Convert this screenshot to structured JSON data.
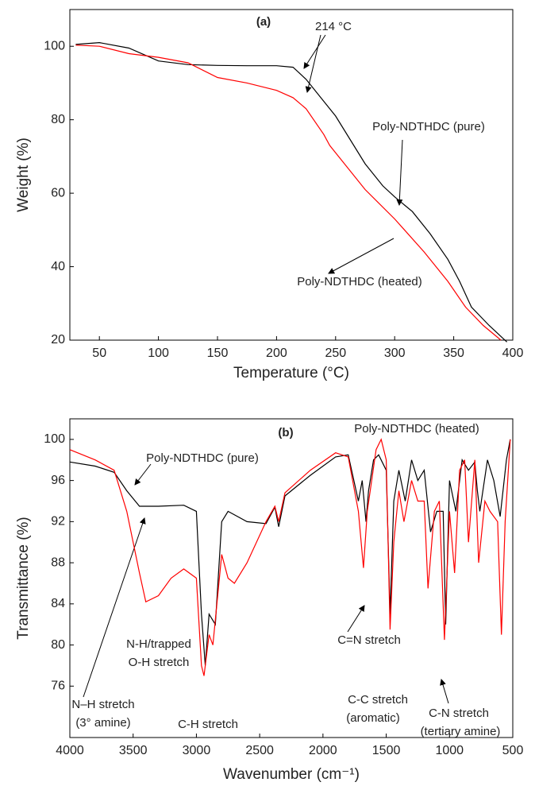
{
  "chart_data": [
    {
      "type": "line",
      "title": "(a)",
      "xlabel": "Temperature (°C)",
      "ylabel": "Weight (%)",
      "xlim": [
        25,
        400
      ],
      "xticks": [
        50,
        100,
        150,
        200,
        250,
        300,
        350,
        400
      ],
      "ylim": [
        20,
        110
      ],
      "yticks": [
        20,
        40,
        60,
        80,
        100
      ],
      "annotations": [
        "214 °C"
      ],
      "series": [
        {
          "name": "Poly-NDTHDC (pure)",
          "color": "#000000",
          "x": [
            30,
            50,
            75,
            100,
            125,
            150,
            175,
            200,
            214,
            225,
            250,
            275,
            290,
            300,
            315,
            330,
            345,
            355,
            365,
            380,
            395
          ],
          "values": [
            100.5,
            101,
            99.5,
            96,
            95,
            94.8,
            94.7,
            94.7,
            94.3,
            91,
            81,
            68,
            62,
            59,
            55,
            49,
            42,
            36,
            29,
            24,
            19.5
          ]
        },
        {
          "name": "Poly-NDTHDC (heated)",
          "color": "#ff0000",
          "x": [
            30,
            50,
            75,
            100,
            125,
            150,
            175,
            200,
            214,
            225,
            240,
            245,
            250,
            260,
            275,
            300,
            325,
            345,
            360,
            375,
            390
          ],
          "values": [
            100.3,
            100,
            98,
            97,
            95.5,
            91.5,
            90,
            88,
            86,
            83,
            76,
            73,
            71,
            67,
            61,
            53,
            44,
            36,
            29,
            24,
            20
          ]
        }
      ]
    },
    {
      "type": "line",
      "title": "(b)",
      "xlabel": "Wavenumber (cm⁻¹)",
      "ylabel": "Transmittance (%)",
      "xlim": [
        4000,
        500
      ],
      "xticks": [
        4000,
        3500,
        3000,
        2500,
        2000,
        1500,
        1000,
        500
      ],
      "ylim": [
        71,
        102
      ],
      "yticks": [
        76,
        80,
        84,
        88,
        92,
        96,
        100
      ],
      "annotations": [
        "C=N stretch",
        "N-H/trapped",
        "O-H stretch",
        "N–H stretch",
        "(3° amine)",
        "C-H stretch",
        "C-C stretch",
        "(aromatic)",
        "C-N stretch",
        "(tertiary amine)"
      ],
      "series": [
        {
          "name": "Poly-NDTHDC (pure)",
          "color": "#000000",
          "x": [
            4000,
            3800,
            3650,
            3550,
            3450,
            3300,
            3100,
            3000,
            2960,
            2930,
            2900,
            2850,
            2800,
            2750,
            2600,
            2450,
            2380,
            2350,
            2300,
            2100,
            1900,
            1800,
            1720,
            1690,
            1660,
            1640,
            1600,
            1560,
            1500,
            1470,
            1440,
            1400,
            1350,
            1300,
            1250,
            1200,
            1150,
            1100,
            1050,
            1030,
            1000,
            950,
            900,
            850,
            800,
            780,
            760,
            700,
            650,
            600,
            550,
            520
          ],
          "values": [
            97.8,
            97.4,
            96.8,
            95,
            93.5,
            93.5,
            93.6,
            93,
            83,
            78,
            83,
            82,
            92,
            93,
            92,
            91.8,
            93.4,
            91.5,
            94.5,
            96.5,
            98.3,
            98.5,
            94,
            96,
            92,
            95,
            98,
            98.5,
            97,
            83,
            94,
            97,
            94,
            98,
            96,
            97,
            91,
            93,
            93,
            82,
            96,
            93,
            98,
            97,
            97.8,
            95,
            93,
            98,
            96,
            92.5,
            98,
            100
          ]
        },
        {
          "name": "Poly-NDTHDC (heated)",
          "color": "#ff0000",
          "x": [
            4000,
            3800,
            3650,
            3550,
            3450,
            3400,
            3300,
            3200,
            3100,
            3000,
            2960,
            2940,
            2900,
            2870,
            2800,
            2750,
            2700,
            2600,
            2450,
            2380,
            2350,
            2300,
            2100,
            1900,
            1800,
            1720,
            1680,
            1650,
            1580,
            1540,
            1500,
            1470,
            1440,
            1400,
            1360,
            1300,
            1250,
            1200,
            1170,
            1120,
            1080,
            1040,
            1000,
            960,
            920,
            880,
            850,
            800,
            770,
            720,
            680,
            620,
            590,
            560,
            520
          ],
          "values": [
            99,
            98,
            97,
            93,
            87,
            84.2,
            84.8,
            86.5,
            87.4,
            86.5,
            78,
            77,
            81,
            80,
            88.8,
            86.5,
            86,
            88,
            92,
            93.5,
            92,
            94.8,
            97,
            98.7,
            98.3,
            93,
            87.5,
            93,
            99,
            100,
            98,
            81.5,
            90,
            95,
            92,
            96,
            94,
            94,
            85.5,
            93,
            94,
            80.5,
            93,
            87,
            97,
            98,
            90,
            98,
            88,
            94,
            93,
            92,
            81,
            92,
            100
          ]
        }
      ]
    }
  ]
}
